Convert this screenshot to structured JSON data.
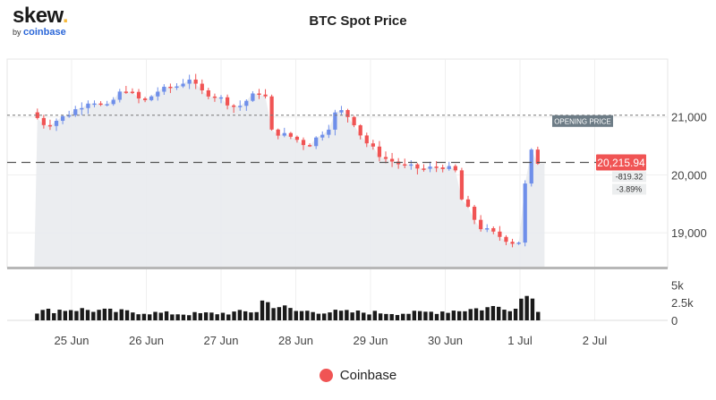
{
  "logo": {
    "main": "skew",
    "dot": ".",
    "by": "by",
    "brand": "coinbase"
  },
  "colors": {
    "up": "#6f8fea",
    "down": "#f05454",
    "price_tag": "#f05454",
    "opening_tag": "#6d7c86"
  },
  "chart_data": {
    "type": "candlestick",
    "title": "BTC Spot Price",
    "x_ticks": [
      "25 Jun",
      "26 Jun",
      "27 Jun",
      "28 Jun",
      "29 Jun",
      "30 Jun",
      "1 Jul",
      "2 Jul"
    ],
    "y_ticks": [
      "21,000",
      "20,000",
      "19,000"
    ],
    "ylim": [
      18400,
      22000
    ],
    "volume_ticks": [
      "5k",
      "2.5k",
      "0"
    ],
    "volume_ylim": [
      0,
      6800
    ],
    "opening_price_label": "OPENING PRICE",
    "opening_price": 21030,
    "last_price_label": "20,215.94",
    "last_price": 20215.94,
    "change_abs": "-819.32",
    "change_pct": "-3.89%",
    "series": [
      {
        "name": "Coinbase",
        "type": "candlestick",
        "anchors": [
          [
            -0.5,
            21080
          ],
          [
            -0.3,
            20850
          ],
          [
            0.0,
            21050
          ],
          [
            0.3,
            21300
          ],
          [
            0.5,
            21150
          ],
          [
            0.75,
            21500
          ],
          [
            1.0,
            21250
          ],
          [
            1.2,
            21450
          ],
          [
            1.5,
            21550
          ],
          [
            1.6,
            21700
          ],
          [
            1.75,
            21450
          ],
          [
            2.0,
            21350
          ],
          [
            2.25,
            21150
          ],
          [
            2.5,
            21400
          ],
          [
            2.62,
            21450
          ],
          [
            2.72,
            20750
          ],
          [
            3.0,
            20650
          ],
          [
            3.2,
            20500
          ],
          [
            3.5,
            20850
          ],
          [
            3.6,
            21150
          ],
          [
            3.8,
            20950
          ],
          [
            3.95,
            20600
          ],
          [
            4.2,
            20300
          ],
          [
            4.5,
            20150
          ],
          [
            4.75,
            20100
          ],
          [
            5.0,
            20150
          ],
          [
            5.2,
            20050
          ],
          [
            5.25,
            19600
          ],
          [
            5.5,
            19100
          ],
          [
            5.75,
            18950
          ],
          [
            6.0,
            18800
          ],
          [
            6.08,
            18950
          ],
          [
            6.12,
            20100
          ],
          [
            6.17,
            20450
          ],
          [
            6.28,
            20220
          ]
        ]
      },
      {
        "name": "Volume",
        "type": "bar",
        "anchors": [
          [
            -0.5,
            1200
          ],
          [
            0.0,
            1600
          ],
          [
            0.5,
            1300
          ],
          [
            1.0,
            1100
          ],
          [
            1.5,
            900
          ],
          [
            2.0,
            1000
          ],
          [
            2.5,
            1300
          ],
          [
            2.55,
            2700
          ],
          [
            3.0,
            1300
          ],
          [
            3.5,
            1200
          ],
          [
            4.0,
            1100
          ],
          [
            4.5,
            1000
          ],
          [
            5.0,
            1300
          ],
          [
            5.5,
            1700
          ],
          [
            5.8,
            2000
          ],
          [
            6.0,
            1500
          ],
          [
            6.05,
            6500
          ],
          [
            6.12,
            3800
          ],
          [
            6.2,
            2200
          ],
          [
            6.28,
            1000
          ]
        ]
      }
    ],
    "legend": [
      "Coinbase"
    ],
    "legend_position": "bottom-center"
  }
}
